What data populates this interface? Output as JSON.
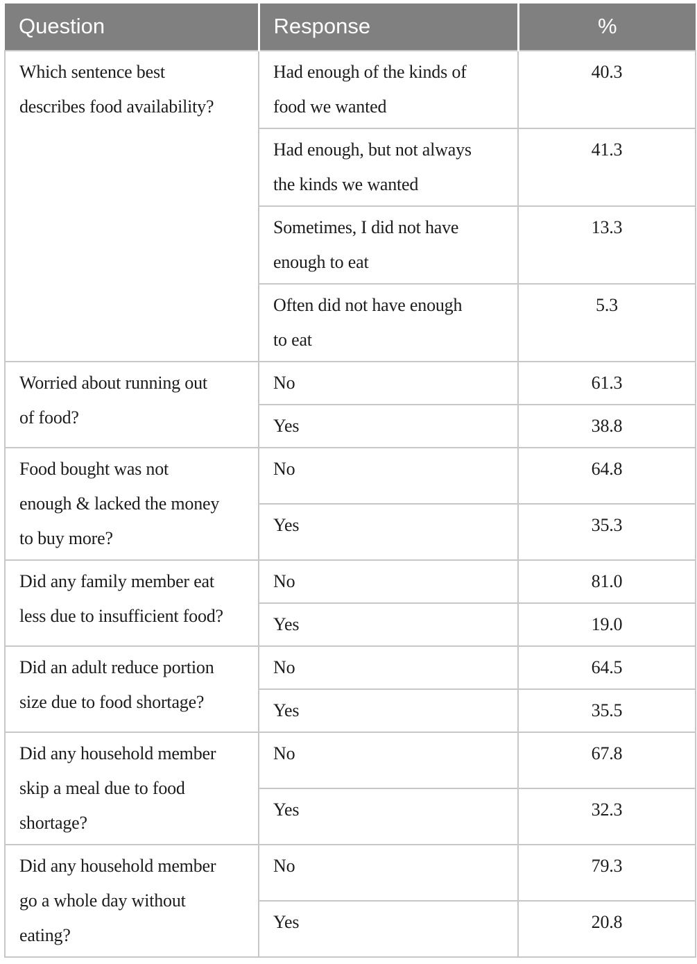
{
  "colors": {
    "header_bg": "#808080",
    "header_text": "#ffffff",
    "grid_line": "#c7c7c7",
    "body_text": "#1c1c1c"
  },
  "table": {
    "headers": {
      "question": "Question",
      "response": "Response",
      "percent": "%"
    },
    "groups": [
      {
        "question": "Which sentence best\ndescribes food availability?",
        "rows": [
          {
            "response": "Had enough of the kinds of\nfood we wanted",
            "pct": "40.3"
          },
          {
            "response": "Had enough, but not always\nthe kinds we wanted",
            "pct": "41.3"
          },
          {
            "response": "Sometimes, I did not have\nenough to eat",
            "pct": "13.3"
          },
          {
            "response": "Often did not have enough\nto eat",
            "pct": "5.3"
          }
        ]
      },
      {
        "question": "Worried about running out\nof food?",
        "rows": [
          {
            "response": "No",
            "pct": "61.3"
          },
          {
            "response": "Yes",
            "pct": "38.8"
          }
        ]
      },
      {
        "question": "Food bought was not\nenough & lacked the money\nto buy more?",
        "rows": [
          {
            "response": "No",
            "pct": "64.8"
          },
          {
            "response": "Yes",
            "pct": "35.3"
          }
        ]
      },
      {
        "question": "Did any family member eat\nless due to insufficient food?",
        "rows": [
          {
            "response": "No",
            "pct": "81.0"
          },
          {
            "response": "Yes",
            "pct": "19.0"
          }
        ]
      },
      {
        "question": "Did an adult reduce portion\nsize due to food shortage?",
        "rows": [
          {
            "response": "No",
            "pct": "64.5"
          },
          {
            "response": "Yes",
            "pct": "35.5"
          }
        ]
      },
      {
        "question": "Did any household member\nskip a meal due to food\nshortage?",
        "rows": [
          {
            "response": "No",
            "pct": "67.8"
          },
          {
            "response": "Yes",
            "pct": "32.3"
          }
        ]
      },
      {
        "question": "Did any household member\ngo a whole day without\neating?",
        "rows": [
          {
            "response": "No",
            "pct": "79.3"
          },
          {
            "response": "Yes",
            "pct": "20.8"
          }
        ]
      }
    ]
  }
}
